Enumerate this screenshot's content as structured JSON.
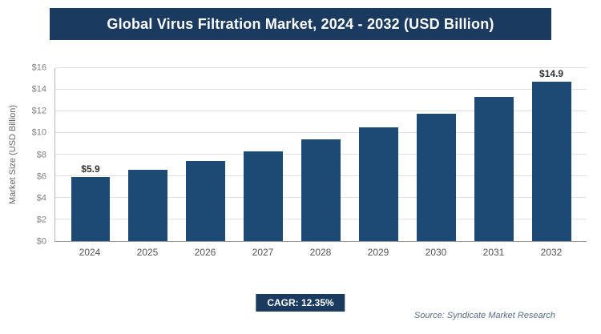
{
  "header": {
    "title": "Global Virus Filtration Market, 2024 - 2032 (USD Billion)"
  },
  "footer": {
    "cagr_label": "CAGR: 12.35%",
    "source": "Source: Syndicate Market Research"
  },
  "colors": {
    "banner": "#1b3a5f",
    "bar": "#1d4a75",
    "badge": "#1b3a5f"
  },
  "chart_data": {
    "type": "bar",
    "title": "Global Virus Filtration Market, 2024 - 2032 (USD Billion)",
    "categories": [
      "2024",
      "2025",
      "2026",
      "2027",
      "2028",
      "2029",
      "2030",
      "2031",
      "2032"
    ],
    "values": [
      5.9,
      6.6,
      7.4,
      8.3,
      9.4,
      10.5,
      11.8,
      13.3,
      14.9
    ],
    "value_labels": [
      "$5.9",
      "",
      "",
      "",
      "",
      "",
      "",
      "",
      "$14.9"
    ],
    "xlabel": "",
    "ylabel": "Market Size (USD Billion)",
    "ylim": [
      0,
      16
    ],
    "ytick_step": 2,
    "ytick_prefix": "$",
    "grid": "horizontal",
    "legend": "none"
  }
}
